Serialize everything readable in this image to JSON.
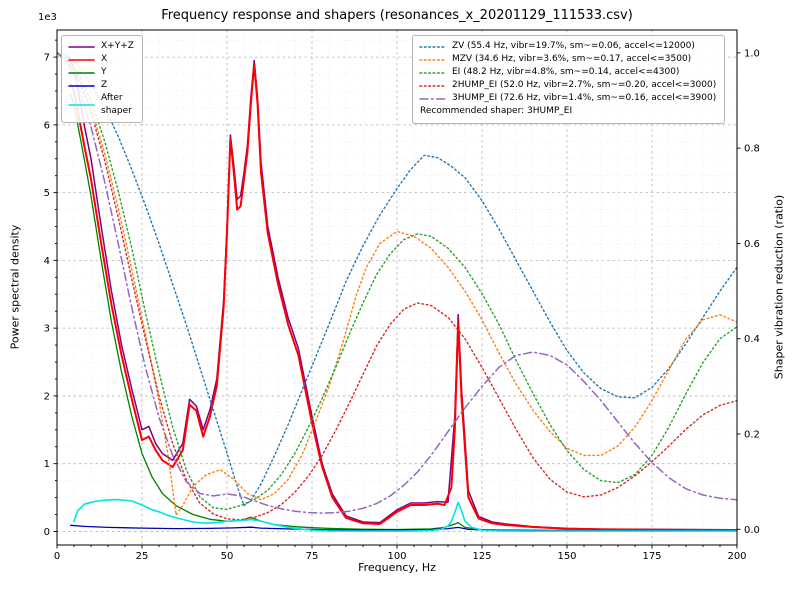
{
  "chart_data": {
    "type": "line",
    "title": "Frequency response and shapers (resonances_x_20201129_111533.csv)",
    "xlabel": "Frequency, Hz",
    "ylabel_left": "Power spectral density",
    "ylabel_right": "Shaper vibration reduction (ratio)",
    "offset_text": "1e3",
    "grid": true,
    "xlim": [
      0,
      200
    ],
    "ylim_left": [
      -200,
      7400
    ],
    "ylim_right": [
      -0.033,
      1.048
    ],
    "x_ticks": [
      0,
      25,
      50,
      75,
      100,
      125,
      150,
      175,
      200
    ],
    "y_left_ticks": [
      0,
      1,
      2,
      3,
      4,
      5,
      6,
      7
    ],
    "y_right_ticks": [
      0.0,
      0.2,
      0.4,
      0.6,
      0.8,
      1.0
    ],
    "legend_left": [
      {
        "label": "X+Y+Z",
        "color": "#800080",
        "style": "solid"
      },
      {
        "label": "X",
        "color": "#ff0000",
        "style": "solid"
      },
      {
        "label": "Y",
        "color": "#008000",
        "style": "solid"
      },
      {
        "label": "Z",
        "color": "#0000b8",
        "style": "solid"
      },
      {
        "label": "After\nshaper",
        "color": "#00e5e5",
        "style": "solid"
      }
    ],
    "legend_right": {
      "entries": [
        {
          "label": "ZV (55.4 Hz, vibr=19.7%, sm~=0.06, accel<=12000)",
          "color": "#1f77b4",
          "style": "dotted"
        },
        {
          "label": "MZV (34.6 Hz, vibr=3.6%, sm~=0.17, accel<=3500)",
          "color": "#ff7f0e",
          "style": "dotted"
        },
        {
          "label": "EI (48.2 Hz, vibr=4.8%, sm~=0.14, accel<=4300)",
          "color": "#2ca02c",
          "style": "dotted"
        },
        {
          "label": "2HUMP_EI (52.0 Hz, vibr=2.7%, sm~=0.20, accel<=3000)",
          "color": "#d62728",
          "style": "dotted"
        },
        {
          "label": "3HUMP_EI (72.6 Hz, vibr=1.4%, sm~=0.16, accel<=3900)",
          "color": "#9467bd",
          "style": "dashdot"
        }
      ],
      "footer": "Recommended shaper: 3HUMP_EI"
    },
    "series": [
      {
        "name": "X+Y+Z",
        "axis": "left",
        "color": "#800080",
        "style": "solid",
        "width": 1.5,
        "x": [
          3,
          5,
          8,
          10,
          13,
          16,
          19,
          22,
          25,
          27,
          29,
          31,
          34,
          37,
          39,
          41,
          43,
          45,
          47,
          49,
          50,
          51,
          52,
          53,
          54,
          55,
          56,
          57,
          58,
          59,
          60,
          62,
          65,
          68,
          71,
          75,
          78,
          81,
          85,
          90,
          95,
          100,
          104,
          108,
          112,
          115,
          117,
          118,
          119,
          121,
          124,
          128,
          132,
          136,
          140,
          150,
          160,
          175,
          200
        ],
        "y": [
          7000,
          6850,
          6000,
          5500,
          4500,
          3550,
          2750,
          2100,
          1500,
          1550,
          1300,
          1150,
          1050,
          1300,
          1950,
          1850,
          1500,
          1800,
          2250,
          3400,
          4500,
          5850,
          5400,
          4900,
          4950,
          5300,
          5700,
          6400,
          6950,
          6400,
          5450,
          4500,
          3750,
          3150,
          2700,
          1700,
          1000,
          550,
          230,
          140,
          130,
          320,
          420,
          420,
          440,
          430,
          1700,
          3200,
          2100,
          600,
          220,
          140,
          110,
          90,
          70,
          45,
          35,
          30,
          25
        ]
      },
      {
        "name": "X",
        "axis": "left",
        "color": "#ff0000",
        "style": "solid",
        "width": 2,
        "x": [
          4,
          5,
          8,
          10,
          13,
          16,
          19,
          22,
          25,
          27,
          29,
          31,
          34,
          37,
          39,
          41,
          43,
          45,
          47,
          49,
          50,
          51,
          52,
          53,
          54,
          55,
          56,
          57,
          58,
          59,
          60,
          62,
          65,
          68,
          71,
          75,
          78,
          81,
          85,
          90,
          95,
          100,
          104,
          108,
          112,
          114,
          116,
          117,
          118,
          119,
          121,
          124,
          128,
          132,
          136,
          140,
          150,
          160,
          175,
          200
        ],
        "y": [
          6600,
          6500,
          5700,
          5200,
          4250,
          3350,
          2600,
          1950,
          1350,
          1400,
          1200,
          1050,
          950,
          1200,
          1870,
          1780,
          1400,
          1700,
          2150,
          3300,
          4400,
          5800,
          5300,
          4750,
          4800,
          5200,
          5600,
          6300,
          6900,
          6300,
          5300,
          4400,
          3650,
          3050,
          2600,
          1600,
          950,
          500,
          200,
          120,
          110,
          290,
          390,
          390,
          410,
          390,
          650,
          1500,
          3080,
          1950,
          500,
          190,
          120,
          95,
          80,
          65,
          40,
          30,
          25,
          20
        ]
      },
      {
        "name": "Y",
        "axis": "left",
        "color": "#008000",
        "style": "solid",
        "width": 1.3,
        "x": [
          4,
          5,
          8,
          10,
          13,
          16,
          19,
          22,
          25,
          28,
          31,
          35,
          40,
          45,
          50,
          54,
          57,
          60,
          64,
          70,
          75,
          80,
          90,
          100,
          110,
          114,
          117,
          118,
          120,
          124,
          130,
          140,
          160,
          180,
          200
        ],
        "y": [
          6450,
          6300,
          5500,
          4950,
          4000,
          3100,
          2350,
          1700,
          1150,
          800,
          560,
          380,
          250,
          180,
          150,
          160,
          210,
          150,
          100,
          70,
          55,
          45,
          32,
          28,
          38,
          60,
          110,
          130,
          60,
          30,
          22,
          18,
          14,
          12,
          10
        ]
      },
      {
        "name": "Z",
        "axis": "left",
        "color": "#0000b8",
        "style": "solid",
        "width": 1.3,
        "x": [
          4,
          8,
          15,
          25,
          35,
          45,
          52,
          57,
          60,
          70,
          80,
          90,
          100,
          110,
          115,
          118,
          121,
          130,
          140,
          160,
          180,
          200
        ],
        "y": [
          90,
          75,
          60,
          50,
          42,
          45,
          52,
          62,
          50,
          35,
          25,
          20,
          22,
          28,
          42,
          60,
          30,
          16,
          12,
          10,
          10,
          10
        ]
      },
      {
        "name": "ZV",
        "axis": "right",
        "color": "#1f77b4",
        "style": "dotted",
        "width": 1.4,
        "x": [
          0,
          3,
          6,
          10,
          14,
          18,
          22,
          26,
          30,
          34,
          38,
          42,
          46,
          50,
          53,
          55,
          57,
          60,
          64,
          68,
          72,
          76,
          80,
          85,
          90,
          95,
          100,
          104,
          108,
          112,
          116,
          120,
          125,
          130,
          135,
          140,
          145,
          150,
          155,
          160,
          165,
          170,
          175,
          180,
          185,
          190,
          195,
          200
        ],
        "y": [
          1.0,
          0.995,
          0.975,
          0.935,
          0.885,
          0.825,
          0.755,
          0.68,
          0.6,
          0.515,
          0.43,
          0.34,
          0.25,
          0.16,
          0.09,
          0.05,
          0.06,
          0.095,
          0.155,
          0.22,
          0.29,
          0.36,
          0.43,
          0.52,
          0.595,
          0.66,
          0.715,
          0.755,
          0.785,
          0.78,
          0.762,
          0.738,
          0.69,
          0.63,
          0.565,
          0.5,
          0.435,
          0.375,
          0.328,
          0.295,
          0.278,
          0.276,
          0.298,
          0.338,
          0.39,
          0.445,
          0.5,
          0.55
        ]
      },
      {
        "name": "MZV",
        "axis": "right",
        "color": "#ff7f0e",
        "style": "dotted",
        "width": 1.4,
        "x": [
          0,
          3,
          6,
          10,
          14,
          18,
          22,
          26,
          30,
          33,
          35,
          37,
          40,
          44,
          48,
          52,
          56,
          60,
          64,
          68,
          72,
          76,
          80,
          84,
          88,
          91,
          95,
          100,
          105,
          110,
          115,
          120,
          125,
          130,
          135,
          140,
          145,
          150,
          155,
          160,
          165,
          170,
          175,
          180,
          185,
          190,
          195,
          200
        ],
        "y": [
          1.0,
          0.99,
          0.955,
          0.885,
          0.79,
          0.675,
          0.545,
          0.41,
          0.27,
          0.14,
          0.03,
          0.05,
          0.09,
          0.115,
          0.125,
          0.105,
          0.075,
          0.062,
          0.075,
          0.105,
          0.155,
          0.225,
          0.3,
          0.39,
          0.49,
          0.55,
          0.6,
          0.625,
          0.615,
          0.59,
          0.55,
          0.5,
          0.44,
          0.37,
          0.305,
          0.25,
          0.205,
          0.17,
          0.155,
          0.155,
          0.175,
          0.215,
          0.27,
          0.335,
          0.4,
          0.44,
          0.45,
          0.435
        ]
      },
      {
        "name": "EI",
        "axis": "right",
        "color": "#2ca02c",
        "style": "dotted",
        "width": 1.4,
        "x": [
          0,
          3,
          6,
          10,
          14,
          18,
          22,
          26,
          30,
          34,
          38,
          42,
          46,
          50,
          54,
          58,
          62,
          66,
          70,
          74,
          78,
          82,
          86,
          90,
          94,
          98,
          102,
          106,
          110,
          115,
          120,
          125,
          130,
          135,
          140,
          145,
          150,
          155,
          160,
          165,
          170,
          175,
          180,
          185,
          190,
          195,
          200
        ],
        "y": [
          1.0,
          0.99,
          0.96,
          0.9,
          0.815,
          0.71,
          0.59,
          0.455,
          0.33,
          0.215,
          0.125,
          0.068,
          0.045,
          0.042,
          0.05,
          0.062,
          0.082,
          0.115,
          0.16,
          0.215,
          0.275,
          0.34,
          0.41,
          0.475,
          0.535,
          0.578,
          0.608,
          0.62,
          0.615,
          0.59,
          0.55,
          0.495,
          0.43,
          0.355,
          0.285,
          0.22,
          0.165,
          0.125,
          0.102,
          0.098,
          0.115,
          0.155,
          0.215,
          0.285,
          0.35,
          0.4,
          0.425
        ]
      },
      {
        "name": "2HUMP_EI",
        "axis": "right",
        "color": "#d62728",
        "style": "dotted",
        "width": 1.4,
        "x": [
          0,
          3,
          6,
          10,
          14,
          18,
          22,
          26,
          30,
          34,
          38,
          42,
          46,
          50,
          54,
          58,
          62,
          66,
          70,
          74,
          78,
          82,
          86,
          90,
          94,
          98,
          102,
          106,
          110,
          115,
          120,
          125,
          130,
          135,
          140,
          145,
          150,
          155,
          160,
          165,
          170,
          175,
          180,
          185,
          190,
          195,
          200
        ],
        "y": [
          1.0,
          0.985,
          0.95,
          0.875,
          0.775,
          0.655,
          0.525,
          0.4,
          0.28,
          0.18,
          0.105,
          0.055,
          0.032,
          0.022,
          0.02,
          0.025,
          0.035,
          0.052,
          0.078,
          0.112,
          0.155,
          0.208,
          0.265,
          0.325,
          0.385,
          0.43,
          0.462,
          0.475,
          0.47,
          0.445,
          0.4,
          0.34,
          0.275,
          0.21,
          0.15,
          0.105,
          0.078,
          0.068,
          0.072,
          0.088,
          0.112,
          0.142,
          0.175,
          0.21,
          0.24,
          0.26,
          0.27
        ]
      },
      {
        "name": "3HUMP_EI",
        "axis": "right",
        "color": "#9467bd",
        "style": "dashdot",
        "width": 1.5,
        "x": [
          0,
          3,
          6,
          10,
          14,
          18,
          22,
          26,
          30,
          34,
          38,
          42,
          46,
          50,
          54,
          58,
          62,
          66,
          70,
          74,
          78,
          82,
          86,
          90,
          94,
          98,
          102,
          106,
          110,
          115,
          120,
          125,
          130,
          135,
          140,
          145,
          150,
          155,
          160,
          165,
          170,
          175,
          180,
          185,
          190,
          195,
          200
        ],
        "y": [
          1.0,
          0.98,
          0.935,
          0.845,
          0.73,
          0.6,
          0.465,
          0.34,
          0.235,
          0.155,
          0.1,
          0.075,
          0.07,
          0.074,
          0.07,
          0.06,
          0.05,
          0.043,
          0.038,
          0.035,
          0.034,
          0.035,
          0.038,
          0.044,
          0.054,
          0.07,
          0.092,
          0.12,
          0.155,
          0.205,
          0.255,
          0.3,
          0.34,
          0.365,
          0.372,
          0.365,
          0.345,
          0.31,
          0.27,
          0.225,
          0.18,
          0.14,
          0.108,
          0.085,
          0.072,
          0.065,
          0.062
        ]
      },
      {
        "name": "After shaper",
        "axis": "left",
        "color": "#00e5e5",
        "style": "solid",
        "width": 1.6,
        "x": [
          5,
          6,
          8,
          10,
          12,
          15,
          18,
          20,
          22,
          25,
          28,
          30,
          33,
          36,
          40,
          44,
          47,
          50,
          53,
          55,
          57,
          59,
          61,
          64,
          67,
          70,
          75,
          80,
          90,
          100,
          105,
          110,
          113,
          115,
          116,
          117,
          118,
          119,
          120,
          122,
          125,
          130,
          140,
          160,
          180,
          200
        ],
        "y": [
          150,
          300,
          400,
          430,
          450,
          465,
          470,
          460,
          450,
          390,
          320,
          290,
          230,
          190,
          140,
          120,
          130,
          150,
          160,
          165,
          175,
          160,
          140,
          100,
          70,
          45,
          18,
          8,
          5,
          5,
          8,
          15,
          30,
          80,
          150,
          280,
          430,
          300,
          150,
          60,
          20,
          8,
          5,
          5,
          5,
          5
        ]
      }
    ]
  }
}
